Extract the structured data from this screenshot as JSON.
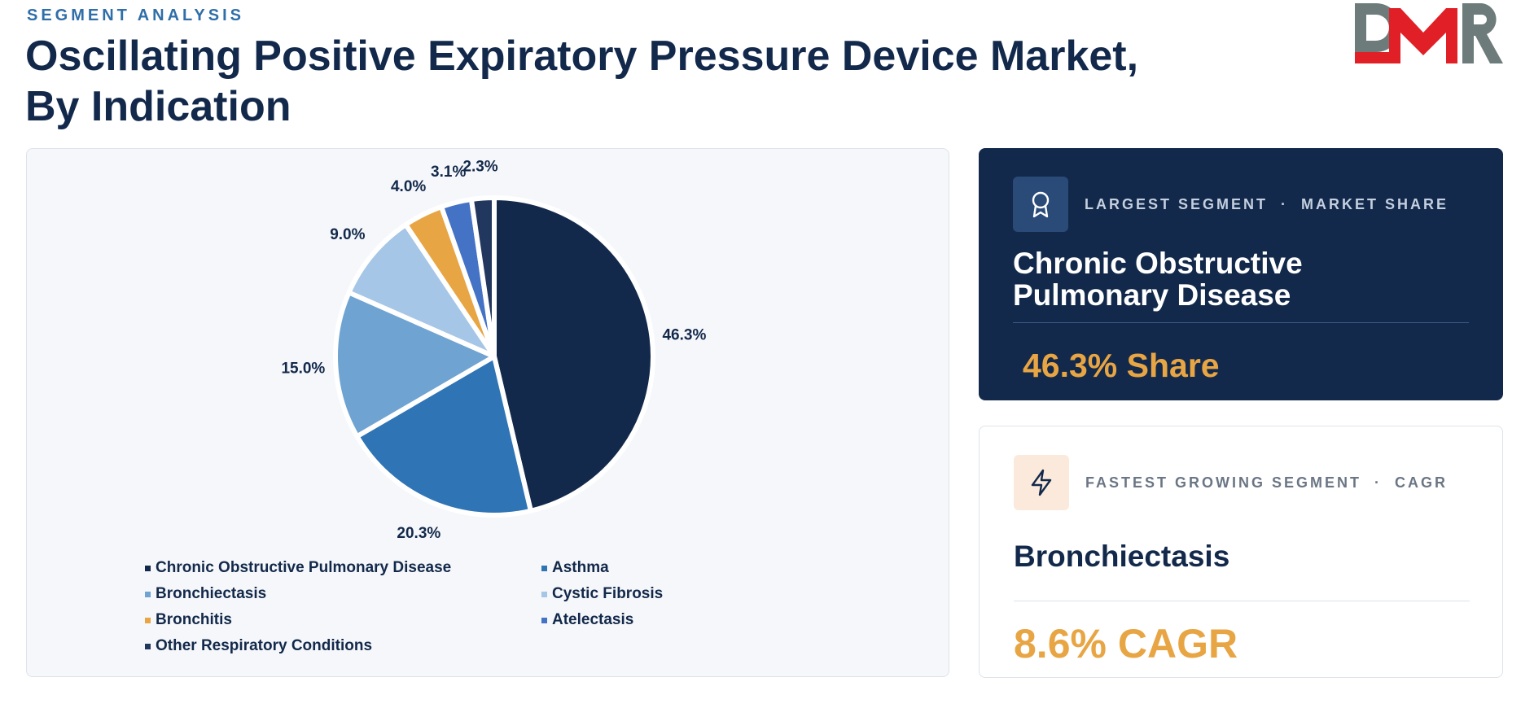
{
  "header": {
    "eyebrow": "SEGMENT ANALYSIS",
    "title_line1": "Oscillating Positive Expiratory Pressure Device Market,",
    "title_line2": "By Indication"
  },
  "logo": {
    "text": "DMR",
    "colors": {
      "grey": "#6d7b7b",
      "red": "#e11f26"
    }
  },
  "chart_data": {
    "type": "pie",
    "title": "",
    "categories": [
      "Chronic Obstructive Pulmonary Disease",
      "Asthma",
      "Bronchiectasis",
      "Cystic Fibrosis",
      "Bronchitis",
      "Atelectasis",
      "Other Respiratory Conditions"
    ],
    "values": [
      46.3,
      20.3,
      15.0,
      9.0,
      4.0,
      3.1,
      2.3
    ],
    "labels": [
      "46.3%",
      "20.3%",
      "15.0%",
      "9.0%",
      "4.0%",
      "3.1%",
      "2.3%"
    ],
    "unit": "%",
    "colors": [
      "#13294b",
      "#2f74b5",
      "#6fa3d1",
      "#a5c6e6",
      "#e8a544",
      "#4472c4",
      "#22375e"
    ],
    "start_angle_deg": 0,
    "direction": "clockwise",
    "legend_position": "bottom"
  },
  "largest_segment": {
    "label": "LARGEST SEGMENT",
    "separator": "·",
    "label2": "MARKET SHARE",
    "name": "Chronic Obstructive Pulmonary Disease",
    "metric": "46.3% Share",
    "icon": "award-icon"
  },
  "fastest_segment": {
    "label": "FASTEST GROWING SEGMENT",
    "separator": "·",
    "label2": "CAGR",
    "name": "Bronchiectasis",
    "metric": "8.6% CAGR",
    "icon": "lightning-icon"
  }
}
